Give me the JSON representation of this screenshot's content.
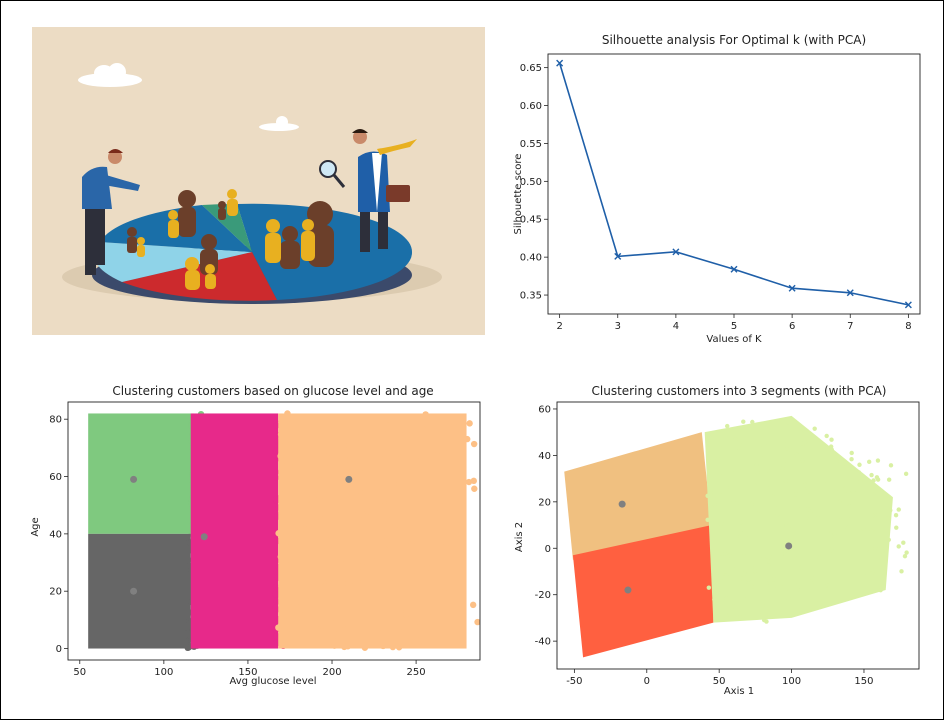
{
  "chart_data": [
    {
      "type": "line",
      "title": "Silhouette analysis For Optimal k (with PCA)",
      "xlabel": "Values of K",
      "ylabel": "Silhouette score",
      "x": [
        2,
        3,
        4,
        5,
        6,
        7,
        8
      ],
      "y": [
        0.656,
        0.401,
        0.407,
        0.384,
        0.359,
        0.353,
        0.337
      ],
      "xlim": [
        1.8,
        8.2
      ],
      "ylim": [
        0.325,
        0.668
      ],
      "xticks": [
        2,
        3,
        4,
        5,
        6,
        7,
        8
      ],
      "yticks": [
        0.35,
        0.4,
        0.45,
        0.5,
        0.55,
        0.6,
        0.65
      ],
      "marker": "x",
      "color": "#1f5fa8"
    },
    {
      "type": "scatter",
      "title": "Clustering customers based on glucose level and age",
      "xlabel": "Avg glucose level",
      "ylabel": "Age",
      "xlim": [
        43,
        288
      ],
      "ylim": [
        -4,
        86
      ],
      "xticks": [
        50,
        100,
        150,
        200,
        250
      ],
      "yticks": [
        0,
        20,
        40,
        60,
        80
      ],
      "series": [
        {
          "color": "#7fc97f",
          "region": {
            "x": [
              55,
              118
            ],
            "y": [
              40,
              82
            ]
          }
        },
        {
          "color": "#666666",
          "region": {
            "x": [
              55,
              116
            ],
            "y": [
              0,
              40
            ]
          }
        },
        {
          "color": "#e7298a",
          "region": {
            "x": [
              116,
              168
            ],
            "y": [
              0,
              82
            ]
          }
        },
        {
          "color": "#fdc086",
          "region": {
            "x": [
              168,
              280
            ],
            "y": [
              0,
              82
            ]
          }
        }
      ],
      "centroids": {
        "x": [
          82,
          82,
          124,
          210
        ],
        "y": [
          59,
          20,
          39,
          59
        ],
        "color": "#808080"
      }
    },
    {
      "type": "scatter",
      "title": "Clustering customers into 3 segments (with PCA)",
      "xlabel": "Axis 1",
      "ylabel": "Axis 2",
      "xlim": [
        -62,
        188
      ],
      "ylim": [
        -52,
        63
      ],
      "xticks": [
        -50,
        0,
        50,
        100,
        150
      ],
      "yticks": [
        -40,
        -20,
        0,
        20,
        40,
        60
      ],
      "series": [
        {
          "color": "#f0c080",
          "region": {
            "x": [
              -55,
              45
            ],
            "y": [
              5,
              50
            ]
          }
        },
        {
          "color": "#ff6040",
          "region": {
            "x": [
              -50,
              45
            ],
            "y": [
              -47,
              8
            ]
          }
        },
        {
          "color": "#d9f0a3",
          "region": {
            "x": [
              42,
              170
            ],
            "y": [
              -32,
              57
            ]
          }
        }
      ],
      "centroids": {
        "x": [
          -17,
          -13,
          98
        ],
        "y": [
          19,
          -18,
          1
        ],
        "color": "#808080"
      }
    }
  ],
  "colors": {
    "illustration_bg": "#ecdcc4",
    "pie_blue": "#1a6fa8",
    "pie_red": "#cc2a2d",
    "pie_light_blue": "#8fd3e8",
    "pie_green": "#3a9a7a",
    "figure_gold": "#e8b020",
    "figure_brown": "#6b3f2a"
  }
}
